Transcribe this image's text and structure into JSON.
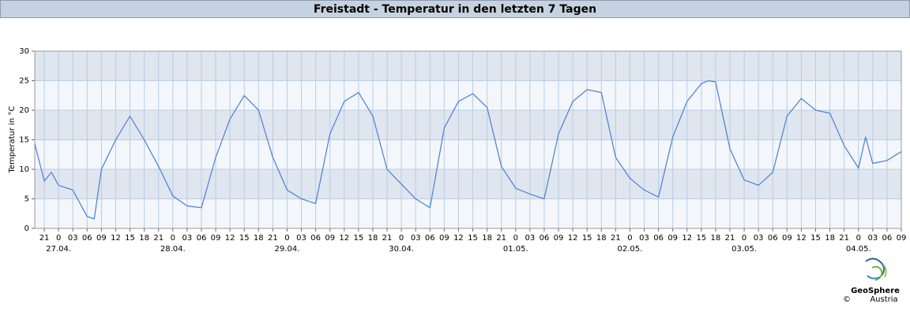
{
  "chart_data": {
    "type": "line",
    "title": "Freistadt - Temperatur in den letzten 7 Tagen",
    "ylabel": "Temperatur in °C",
    "footer": {
      "brand": "GeoSphere",
      "sub": "Austria",
      "copyright": "©"
    },
    "x": [
      "26.04. 19:00",
      "26.04. 21:00",
      "26.04. 22:30",
      "27.04. 00:00",
      "27.04. 03:00",
      "27.04. 06:00",
      "27.04. 07:30",
      "27.04. 09:00",
      "27.04. 12:00",
      "27.04. 15:00",
      "27.04. 18:00",
      "27.04. 21:00",
      "28.04. 00:00",
      "28.04. 03:00",
      "28.04. 06:00",
      "28.04. 09:00",
      "28.04. 12:00",
      "28.04. 15:00",
      "28.04. 18:00",
      "28.04. 21:00",
      "29.04. 00:00",
      "29.04. 03:00",
      "29.04. 06:00",
      "29.04. 09:00",
      "29.04. 12:00",
      "29.04. 15:00",
      "29.04. 18:00",
      "29.04. 21:00",
      "30.04. 00:00",
      "30.04. 03:00",
      "30.04. 06:00",
      "30.04. 09:00",
      "30.04. 12:00",
      "30.04. 15:00",
      "30.04. 18:00",
      "30.04. 21:00",
      "01.05. 00:00",
      "01.05. 03:00",
      "01.05. 06:00",
      "01.05. 09:00",
      "01.05. 12:00",
      "01.05. 15:00",
      "01.05. 18:00",
      "01.05. 21:00",
      "02.05. 00:00",
      "02.05. 03:00",
      "02.05. 06:00",
      "02.05. 09:00",
      "02.05. 12:00",
      "02.05. 15:00",
      "02.05. 16:30",
      "02.05. 18:00",
      "02.05. 21:00",
      "03.05. 00:00",
      "03.05. 03:00",
      "03.05. 06:00",
      "03.05. 09:00",
      "03.05. 12:00",
      "03.05. 15:00",
      "03.05. 18:00",
      "03.05. 21:00",
      "04.05. 00:00",
      "04.05. 01:30",
      "04.05. 03:00",
      "04.05. 06:00",
      "04.05. 09:00"
    ],
    "series": [
      {
        "name": "Temperatur",
        "color": "#4a7fd4",
        "values": [
          14.3,
          8,
          9.5,
          7.3,
          6.5,
          2,
          1.6,
          10,
          15,
          19,
          15,
          10.5,
          5.5,
          3.8,
          3.5,
          12,
          18.5,
          22.5,
          20,
          12,
          6.5,
          5,
          4.2,
          16,
          21.5,
          23,
          19,
          10,
          7.5,
          5,
          3.5,
          17,
          21.5,
          22.8,
          20.5,
          10.5,
          6.8,
          5.8,
          5,
          16,
          21.5,
          23.5,
          23,
          12,
          8.5,
          6.5,
          5.3,
          15.5,
          21.5,
          24.5,
          25,
          24.8,
          13.5,
          8.2,
          7.3,
          9.5,
          19,
          22,
          20,
          19.5,
          14,
          10.2,
          15.5,
          11,
          11.5,
          13
        ]
      }
    ],
    "xlim": [
      "26.04. 19:00",
      "04.05. 09:00"
    ],
    "xticks": [
      {
        "value": "26.04. 21:00",
        "label": "21"
      },
      {
        "value": "27.04. 00:00",
        "label": "0"
      },
      {
        "value": "27.04. 03:00",
        "label": "03"
      },
      {
        "value": "27.04. 06:00",
        "label": "06"
      },
      {
        "value": "27.04. 09:00",
        "label": "09"
      },
      {
        "value": "27.04. 12:00",
        "label": "12"
      },
      {
        "value": "27.04. 15:00",
        "label": "15"
      },
      {
        "value": "27.04. 18:00",
        "label": "18"
      },
      {
        "value": "27.04. 21:00",
        "label": "21"
      },
      {
        "value": "28.04. 00:00",
        "label": "0"
      },
      {
        "value": "28.04. 03:00",
        "label": "03"
      },
      {
        "value": "28.04. 06:00",
        "label": "06"
      },
      {
        "value": "28.04. 09:00",
        "label": "09"
      },
      {
        "value": "28.04. 12:00",
        "label": "12"
      },
      {
        "value": "28.04. 15:00",
        "label": "15"
      },
      {
        "value": "28.04. 18:00",
        "label": "18"
      },
      {
        "value": "28.04. 21:00",
        "label": "21"
      },
      {
        "value": "29.04. 00:00",
        "label": "0"
      },
      {
        "value": "29.04. 03:00",
        "label": "03"
      },
      {
        "value": "29.04. 06:00",
        "label": "06"
      },
      {
        "value": "29.04. 09:00",
        "label": "09"
      },
      {
        "value": "29.04. 12:00",
        "label": "12"
      },
      {
        "value": "29.04. 15:00",
        "label": "15"
      },
      {
        "value": "29.04. 18:00",
        "label": "18"
      },
      {
        "value": "29.04. 21:00",
        "label": "21"
      },
      {
        "value": "30.04. 00:00",
        "label": "0"
      },
      {
        "value": "30.04. 03:00",
        "label": "03"
      },
      {
        "value": "30.04. 06:00",
        "label": "06"
      },
      {
        "value": "30.04. 09:00",
        "label": "09"
      },
      {
        "value": "30.04. 12:00",
        "label": "12"
      },
      {
        "value": "30.04. 15:00",
        "label": "15"
      },
      {
        "value": "30.04. 18:00",
        "label": "18"
      },
      {
        "value": "30.04. 21:00",
        "label": "21"
      },
      {
        "value": "01.05. 00:00",
        "label": "0"
      },
      {
        "value": "01.05. 03:00",
        "label": "03"
      },
      {
        "value": "01.05. 06:00",
        "label": "06"
      },
      {
        "value": "01.05. 09:00",
        "label": "09"
      },
      {
        "value": "01.05. 12:00",
        "label": "12"
      },
      {
        "value": "01.05. 15:00",
        "label": "15"
      },
      {
        "value": "01.05. 18:00",
        "label": "18"
      },
      {
        "value": "01.05. 21:00",
        "label": "21"
      },
      {
        "value": "02.05. 00:00",
        "label": "0"
      },
      {
        "value": "02.05. 03:00",
        "label": "03"
      },
      {
        "value": "02.05. 06:00",
        "label": "06"
      },
      {
        "value": "02.05. 09:00",
        "label": "09"
      },
      {
        "value": "02.05. 12:00",
        "label": "12"
      },
      {
        "value": "02.05. 15:00",
        "label": "15"
      },
      {
        "value": "02.05. 18:00",
        "label": "18"
      },
      {
        "value": "02.05. 21:00",
        "label": "21"
      },
      {
        "value": "03.05. 00:00",
        "label": "0"
      },
      {
        "value": "03.05. 03:00",
        "label": "03"
      },
      {
        "value": "03.05. 06:00",
        "label": "06"
      },
      {
        "value": "03.05. 09:00",
        "label": "09"
      },
      {
        "value": "03.05. 12:00",
        "label": "12"
      },
      {
        "value": "03.05. 15:00",
        "label": "15"
      },
      {
        "value": "03.05. 18:00",
        "label": "18"
      },
      {
        "value": "03.05. 21:00",
        "label": "21"
      },
      {
        "value": "04.05. 00:00",
        "label": "0"
      },
      {
        "value": "04.05. 03:00",
        "label": "03"
      },
      {
        "value": "04.05. 06:00",
        "label": "06"
      },
      {
        "value": "04.05. 09:00",
        "label": "09"
      }
    ],
    "date_labels": [
      {
        "value": "27.04. 00:00",
        "label": "27.04."
      },
      {
        "value": "28.04. 00:00",
        "label": "28.04."
      },
      {
        "value": "29.04. 00:00",
        "label": "29.04."
      },
      {
        "value": "30.04. 00:00",
        "label": "30.04."
      },
      {
        "value": "01.05. 00:00",
        "label": "01.05."
      },
      {
        "value": "02.05. 00:00",
        "label": "02.05."
      },
      {
        "value": "03.05. 00:00",
        "label": "03.05."
      },
      {
        "value": "04.05. 00:00",
        "label": "04.05."
      }
    ],
    "ylim": [
      0,
      30
    ],
    "yticks": [
      0,
      5,
      10,
      15,
      20,
      25,
      30
    ],
    "grid": true,
    "band_colors": [
      "#f3f6fa",
      "#dfe6ef"
    ]
  }
}
